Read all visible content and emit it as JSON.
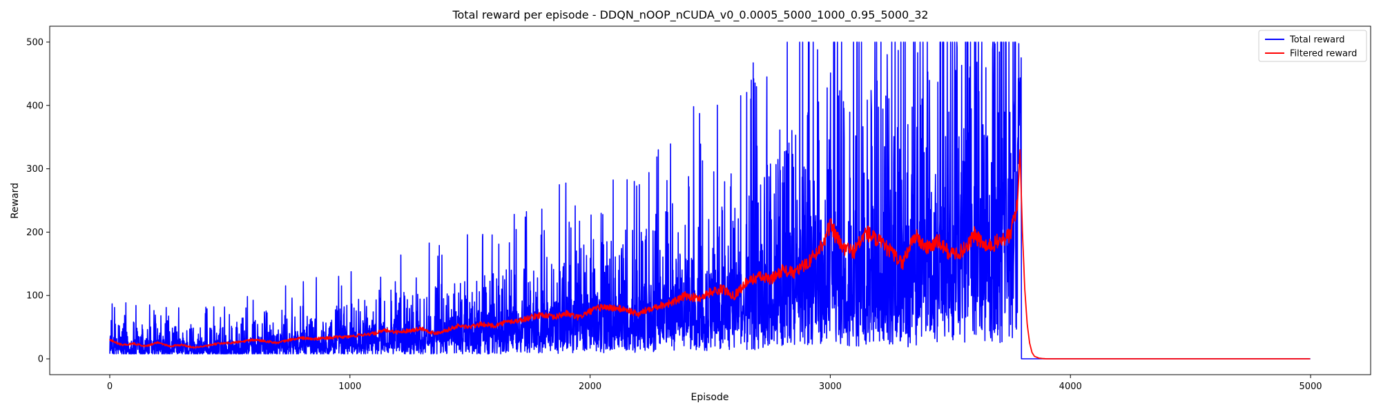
{
  "chart_data": {
    "type": "line",
    "title": "Total reward per episode - DDQN_nOOP_nCUDA_v0_0.0005_5000_1000_0.95_5000_32",
    "xlabel": "Episode",
    "ylabel": "Reward",
    "xlim": [
      -250,
      5250
    ],
    "ylim": [
      -25,
      525
    ],
    "x_ticks": [
      0,
      1000,
      2000,
      3000,
      4000,
      5000
    ],
    "y_ticks": [
      0,
      100,
      200,
      300,
      400,
      500
    ],
    "x_tick_labels": [
      "0",
      "1000",
      "2000",
      "3000",
      "4000",
      "5000"
    ],
    "y_tick_labels": [
      "0",
      "100",
      "200",
      "300",
      "400",
      "500"
    ],
    "grid": false,
    "legend_position": "top-right",
    "episodes": 5000,
    "last_nonzero_episode": 3795,
    "series": [
      {
        "name": "Total reward",
        "color": "#0000ff",
        "trend_x": [
          0,
          200,
          400,
          600,
          800,
          1000,
          1200,
          1400,
          1600,
          1800,
          2000,
          2200,
          2400,
          2600,
          2800,
          3000,
          3100,
          3200,
          3300,
          3400,
          3500,
          3600,
          3700,
          3780,
          3795,
          3796,
          5000
        ],
        "trend_y": [
          25,
          22,
          20,
          25,
          30,
          35,
          42,
          48,
          55,
          65,
          75,
          80,
          95,
          110,
          135,
          185,
          150,
          190,
          145,
          185,
          180,
          195,
          200,
          260,
          260,
          0,
          0
        ],
        "min_value": 8,
        "max_value": 500
      },
      {
        "name": "Filtered reward",
        "color": "#ff0000",
        "x": [
          0,
          50,
          100,
          150,
          200,
          250,
          300,
          350,
          400,
          450,
          500,
          550,
          600,
          650,
          700,
          750,
          800,
          850,
          900,
          950,
          1000,
          1050,
          1100,
          1150,
          1200,
          1250,
          1300,
          1350,
          1400,
          1450,
          1500,
          1550,
          1600,
          1650,
          1700,
          1750,
          1800,
          1850,
          1900,
          1950,
          2000,
          2050,
          2100,
          2150,
          2200,
          2250,
          2300,
          2350,
          2400,
          2450,
          2500,
          2550,
          2600,
          2650,
          2700,
          2750,
          2800,
          2850,
          2900,
          2950,
          3000,
          3050,
          3100,
          3150,
          3200,
          3250,
          3300,
          3350,
          3400,
          3450,
          3500,
          3550,
          3600,
          3650,
          3700,
          3750,
          3780,
          3790,
          3800,
          3810,
          3820,
          3830,
          3840,
          3850,
          3870,
          3900,
          4000,
          4500,
          5000
        ],
        "y": [
          30,
          22,
          24,
          20,
          26,
          20,
          22,
          18,
          20,
          24,
          25,
          27,
          30,
          28,
          25,
          30,
          33,
          31,
          33,
          34,
          35,
          38,
          40,
          45,
          42,
          45,
          48,
          40,
          45,
          52,
          50,
          55,
          52,
          58,
          60,
          65,
          70,
          65,
          72,
          65,
          75,
          82,
          80,
          78,
          70,
          80,
          85,
          90,
          100,
          95,
          105,
          110,
          100,
          120,
          130,
          125,
          140,
          135,
          150,
          170,
          210,
          175,
          170,
          200,
          185,
          170,
          150,
          195,
          175,
          185,
          165,
          170,
          195,
          175,
          185,
          195,
          250,
          330,
          200,
          110,
          55,
          25,
          10,
          4,
          1,
          0,
          0,
          0,
          0
        ]
      }
    ]
  }
}
